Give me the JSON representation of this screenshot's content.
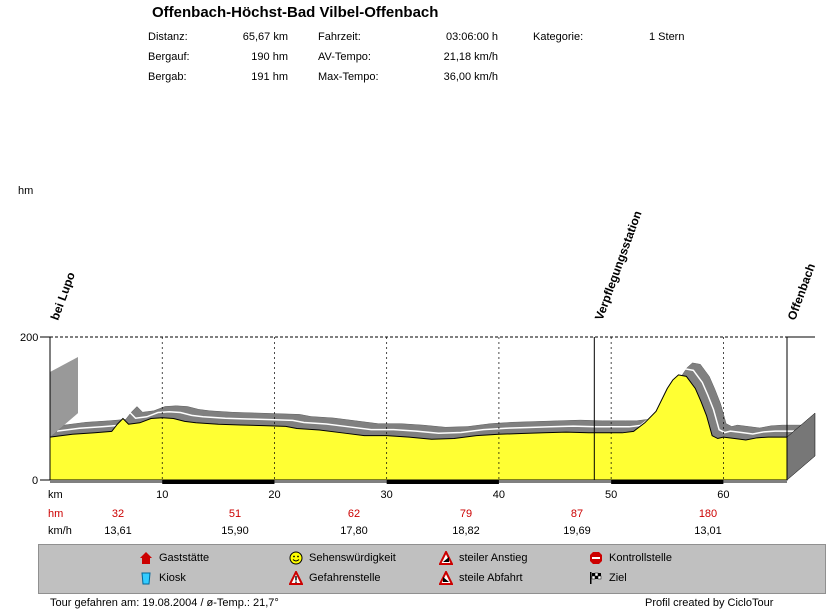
{
  "title": "Offenbach-Höchst-Bad Vilbel-Offenbach",
  "stats": [
    {
      "label": "Distanz:",
      "value": "65,67 km"
    },
    {
      "label": "Bergauf:",
      "value": "190 hm"
    },
    {
      "label": "Bergab:",
      "value": "191 hm"
    },
    {
      "label": "Fahrzeit:",
      "value": "03:06:00 h"
    },
    {
      "label": "AV-Tempo:",
      "value": "21,18 km/h"
    },
    {
      "label": "Max-Tempo:",
      "value": "36,00 km/h"
    },
    {
      "label": "Kategorie:",
      "value": "1 Stern"
    }
  ],
  "chart_data": {
    "type": "area",
    "ylabel": "hm",
    "xlabel": "km",
    "ylim": [
      0,
      200
    ],
    "xlim": [
      0,
      65.67
    ],
    "y_ticks": [
      "200",
      "0"
    ],
    "x_ticks": [
      10,
      20,
      30,
      40,
      50,
      60
    ],
    "fill_color": "#ffff33",
    "shadow_color": "#808080",
    "profile": [
      [
        0,
        60
      ],
      [
        2,
        64
      ],
      [
        4,
        66
      ],
      [
        5.5,
        68
      ],
      [
        6,
        78
      ],
      [
        6.5,
        86
      ],
      [
        7,
        78
      ],
      [
        8,
        80
      ],
      [
        9,
        86
      ],
      [
        10,
        87
      ],
      [
        11,
        86
      ],
      [
        12,
        82
      ],
      [
        13,
        80
      ],
      [
        15,
        78
      ],
      [
        17,
        77
      ],
      [
        19,
        76
      ],
      [
        21,
        75
      ],
      [
        22,
        72
      ],
      [
        24,
        70
      ],
      [
        26,
        66
      ],
      [
        28,
        62
      ],
      [
        30,
        62
      ],
      [
        32,
        60
      ],
      [
        34,
        57
      ],
      [
        36,
        58
      ],
      [
        38,
        62
      ],
      [
        40,
        64
      ],
      [
        42,
        65
      ],
      [
        44,
        66
      ],
      [
        46,
        67
      ],
      [
        48,
        66
      ],
      [
        50,
        66
      ],
      [
        51,
        66
      ],
      [
        52,
        68
      ],
      [
        53,
        80
      ],
      [
        54,
        96
      ],
      [
        55,
        128
      ],
      [
        55.5,
        140
      ],
      [
        56,
        147
      ],
      [
        56.7,
        145
      ],
      [
        57.5,
        128
      ],
      [
        58,
        110
      ],
      [
        58.5,
        90
      ],
      [
        59,
        62
      ],
      [
        59.5,
        58
      ],
      [
        60,
        60
      ],
      [
        61,
        58
      ],
      [
        62,
        56
      ],
      [
        63,
        59
      ],
      [
        64,
        60
      ],
      [
        65.67,
        60
      ]
    ],
    "markers": [
      {
        "label": "bei Lupo",
        "km": 0
      },
      {
        "label": "Verpflegungsstation",
        "km": 48.5
      },
      {
        "label": "Offenbach",
        "km": 65.67
      }
    ],
    "hm_row": {
      "label": "hm",
      "values": [
        "32",
        "51",
        "62",
        "79",
        "87",
        "180"
      ]
    },
    "kmh_row": {
      "label": "km/h",
      "values": [
        "13,61",
        "15,90",
        "17,80",
        "18,82",
        "19,69",
        "13,01"
      ]
    },
    "segment_midpoints_km": [
      5,
      15,
      25,
      35,
      45,
      55
    ]
  },
  "legend": [
    {
      "label": "Gaststätte",
      "icon": "house-icon"
    },
    {
      "label": "Kiosk",
      "icon": "cup-icon"
    },
    {
      "label": "Sehenswürdigkeit",
      "icon": "smiley-icon"
    },
    {
      "label": "Gefahrenstelle",
      "icon": "warning-icon"
    },
    {
      "label": "steiler Anstieg",
      "icon": "steep-climb-icon"
    },
    {
      "label": "steile Abfahrt",
      "icon": "steep-descent-icon"
    },
    {
      "label": "Kontrollstelle",
      "icon": "stop-icon"
    },
    {
      "label": "Ziel",
      "icon": "finish-flag-icon"
    }
  ],
  "footer": {
    "left": "Tour gefahren am: 19.08.2004  /  ø-Temp.: 21,7°",
    "right": "Profil created by CicloTour"
  },
  "colors": {
    "red_text": "#cc0000",
    "legend_bg": "#c0c0c0"
  }
}
